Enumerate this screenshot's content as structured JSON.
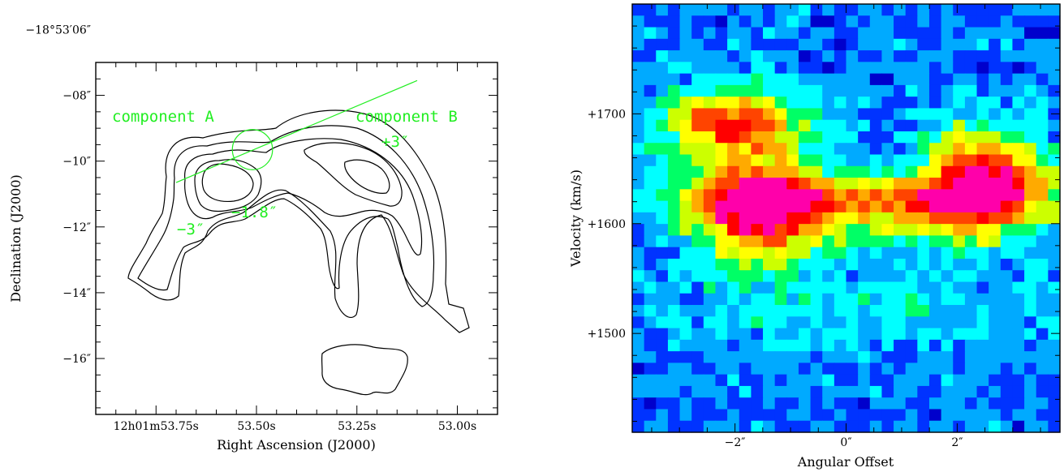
{
  "chart_data": [
    {
      "type": "contour",
      "xlabel": "Right Ascension (J2000)",
      "ylabel": "Declination (J2000)",
      "xlim": [
        53.9,
        52.9
      ],
      "ylim": [
        -17.7,
        -7.0
      ],
      "x_ticks": [
        {
          "value": 53.75,
          "label": "12h01m53.75s"
        },
        {
          "value": 53.5,
          "label": "53.50s"
        },
        {
          "value": 53.25,
          "label": "53.25s"
        },
        {
          "value": 53.0,
          "label": "53.00s"
        }
      ],
      "y_ticks": [
        {
          "value": -6,
          "label": "−18°53′06″"
        },
        {
          "value": -8,
          "label": "−08″"
        },
        {
          "value": -10,
          "label": "−10″"
        },
        {
          "value": -12,
          "label": "−12″"
        },
        {
          "value": -14,
          "label": "−14″"
        },
        {
          "value": -16,
          "label": "−16″"
        }
      ],
      "annotations": {
        "component_a": "component A",
        "component_b": "component B",
        "pos_a": "−3″",
        "pos_b": "+3″",
        "pos_c": "−1.8″"
      },
      "slit": {
        "start": [
          53.7,
          -10.65
        ],
        "end": [
          53.1,
          -7.55
        ]
      },
      "marker": {
        "center": [
          53.51,
          -9.65
        ],
        "radius": 0.05
      },
      "contour_color": "#000000",
      "annotation_color": "#22ee22"
    },
    {
      "type": "heatmap",
      "xlabel": "Angular Offset",
      "ylabel": "Velocity (km/s)",
      "xlim": [
        -3.85,
        3.85
      ],
      "ylim": [
        1410,
        1800
      ],
      "x_ticks": [
        {
          "value": -2,
          "label": "−2″"
        },
        {
          "value": 0,
          "label": "0″"
        },
        {
          "value": 2,
          "label": "2″"
        }
      ],
      "y_ticks": [
        {
          "value": 1700,
          "label": "+1700"
        },
        {
          "value": 1600,
          "label": "+1600"
        },
        {
          "value": 1500,
          "label": "+1500"
        }
      ],
      "grid_cols": 36,
      "grid_rows": 37,
      "colormap": [
        "#0000cc",
        "#0033ff",
        "#00aaff",
        "#00ffff",
        "#00ff66",
        "#ccff00",
        "#ffff00",
        "#ffaa00",
        "#ff4400",
        "#ff0000",
        "#ff00aa"
      ]
    }
  ]
}
